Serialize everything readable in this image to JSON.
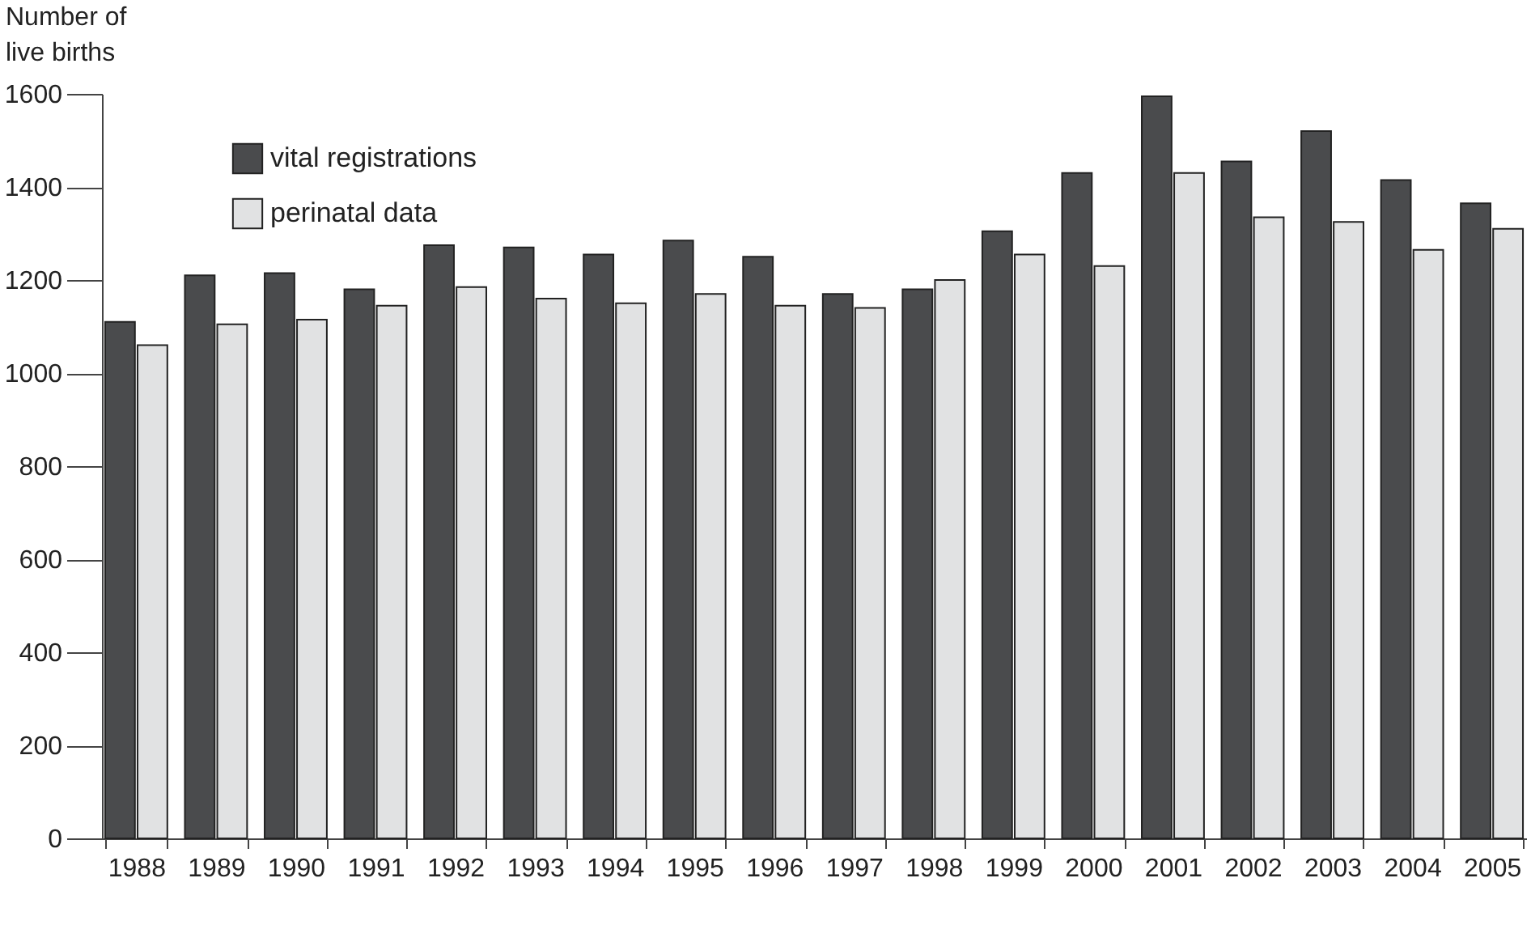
{
  "chart_data": {
    "type": "bar",
    "ylabel": "Number of live births",
    "categories": [
      "1988",
      "1989",
      "1990",
      "1991",
      "1992",
      "1993",
      "1994",
      "1995",
      "1996",
      "1997",
      "1998",
      "1999",
      "2000",
      "2001",
      "2002",
      "2003",
      "2004",
      "2005"
    ],
    "series": [
      {
        "name": "vital registrations",
        "color": "#4a4b4d",
        "values": [
          1110,
          1210,
          1215,
          1180,
          1275,
          1270,
          1255,
          1285,
          1250,
          1170,
          1180,
          1305,
          1430,
          1595,
          1455,
          1520,
          1415,
          1365
        ]
      },
      {
        "name": "perinatal data",
        "color": "#e1e2e3",
        "values": [
          1060,
          1105,
          1115,
          1145,
          1185,
          1160,
          1150,
          1170,
          1145,
          1140,
          1200,
          1255,
          1230,
          1430,
          1335,
          1325,
          1265,
          1310
        ]
      }
    ],
    "ylim": [
      0,
      1600
    ],
    "yticks": [
      0,
      200,
      400,
      600,
      800,
      1000,
      1200,
      1400,
      1600
    ],
    "grid": false,
    "legend": "top left"
  }
}
